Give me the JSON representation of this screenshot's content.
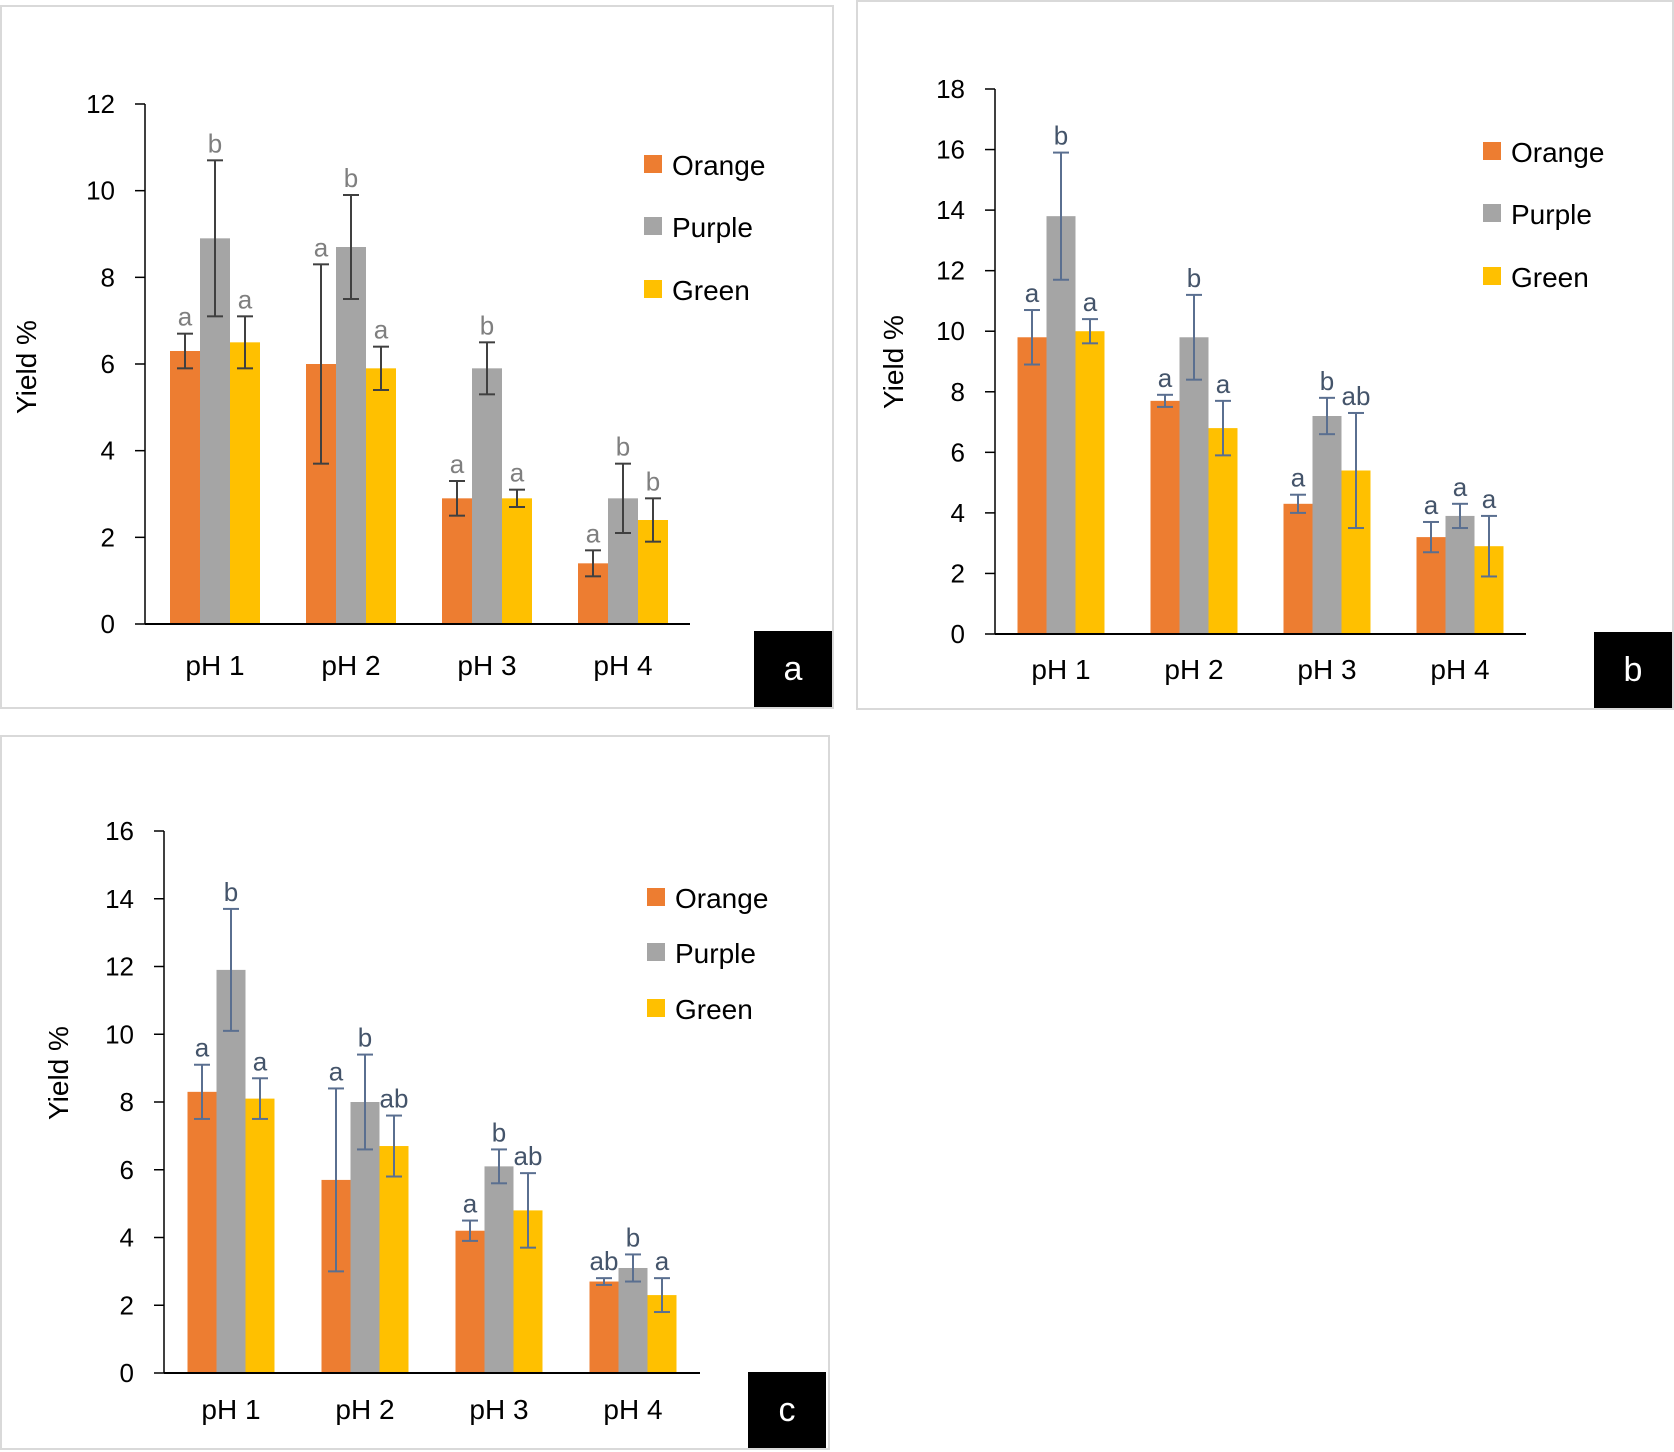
{
  "chart_data": [
    {
      "type": "bar",
      "panel_label": "a",
      "ylabel": "Yield %",
      "xlabel": "",
      "ylim": [
        0,
        12
      ],
      "yticks": [
        "0",
        "2",
        "4",
        "6",
        "8",
        "10",
        "12"
      ],
      "categories": [
        "pH 1",
        "pH 2",
        "pH 3",
        "pH 4"
      ],
      "legend_position": "top-right",
      "series": [
        {
          "name": "Orange",
          "color": "#ED7D31",
          "values": [
            6.3,
            6.0,
            2.9,
            1.4
          ],
          "errors": [
            0.4,
            2.3,
            0.4,
            0.3
          ],
          "letters": [
            "a",
            "a",
            "a",
            "a"
          ]
        },
        {
          "name": "Purple",
          "color": "#A5A5A5",
          "values": [
            8.9,
            8.7,
            5.9,
            2.9
          ],
          "errors": [
            1.8,
            1.2,
            0.6,
            0.8
          ],
          "letters": [
            "b",
            "b",
            "b",
            "b"
          ]
        },
        {
          "name": "Green",
          "color": "#FFC000",
          "values": [
            6.5,
            5.9,
            2.9,
            2.4
          ],
          "errors": [
            0.6,
            0.5,
            0.2,
            0.5
          ],
          "letters": [
            "a",
            "a",
            "a",
            "b"
          ]
        }
      ]
    },
    {
      "type": "bar",
      "panel_label": "b",
      "ylabel": "Yield %",
      "xlabel": "",
      "ylim": [
        0,
        18
      ],
      "yticks": [
        "0",
        "2",
        "4",
        "6",
        "8",
        "10",
        "12",
        "14",
        "16",
        "18"
      ],
      "categories": [
        "pH 1",
        "pH 2",
        "pH 3",
        "pH 4"
      ],
      "legend_position": "top-right",
      "series": [
        {
          "name": "Orange",
          "color": "#ED7D31",
          "values": [
            9.8,
            7.7,
            4.3,
            3.2
          ],
          "errors": [
            0.9,
            0.2,
            0.3,
            0.5
          ],
          "letters": [
            "a",
            "a",
            "a",
            "a"
          ]
        },
        {
          "name": "Purple",
          "color": "#A5A5A5",
          "values": [
            13.8,
            9.8,
            7.2,
            3.9
          ],
          "errors": [
            2.1,
            1.4,
            0.6,
            0.4
          ],
          "letters": [
            "b",
            "b",
            "b",
            "a"
          ]
        },
        {
          "name": "Green",
          "color": "#FFC000",
          "values": [
            10.0,
            6.8,
            5.4,
            2.9
          ],
          "errors": [
            0.4,
            0.9,
            1.9,
            1.0
          ],
          "letters": [
            "a",
            "a",
            "ab",
            "a"
          ]
        }
      ]
    },
    {
      "type": "bar",
      "panel_label": "c",
      "ylabel": "Yield %",
      "xlabel": "",
      "ylim": [
        0,
        16
      ],
      "yticks": [
        "0",
        "2",
        "4",
        "6",
        "8",
        "10",
        "12",
        "14",
        "16"
      ],
      "categories": [
        "pH 1",
        "pH 2",
        "pH 3",
        "pH 4"
      ],
      "legend_position": "top-right",
      "series": [
        {
          "name": "Orange",
          "color": "#ED7D31",
          "values": [
            8.3,
            5.7,
            4.2,
            2.7
          ],
          "errors": [
            0.8,
            2.7,
            0.3,
            0.1
          ],
          "letters": [
            "a",
            "a",
            "a",
            "ab"
          ]
        },
        {
          "name": "Purple",
          "color": "#A5A5A5",
          "values": [
            11.9,
            8.0,
            6.1,
            3.1
          ],
          "errors": [
            1.8,
            1.4,
            0.5,
            0.4
          ],
          "letters": [
            "b",
            "b",
            "b",
            "b"
          ]
        },
        {
          "name": "Green",
          "color": "#FFC000",
          "values": [
            8.1,
            6.7,
            4.8,
            2.3
          ],
          "errors": [
            0.6,
            0.9,
            1.1,
            0.5
          ],
          "letters": [
            "a",
            "ab",
            "ab",
            "a"
          ]
        }
      ]
    }
  ]
}
